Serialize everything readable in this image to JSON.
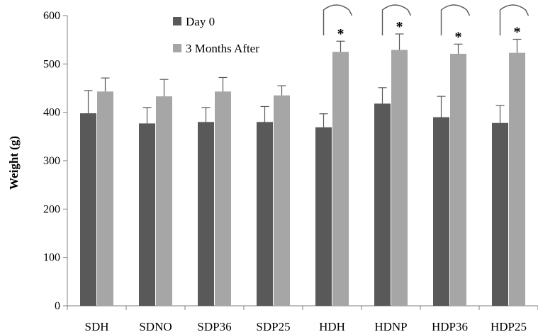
{
  "chart_data": {
    "type": "bar",
    "ylabel": "Weight (g)",
    "ylim": [
      0,
      600
    ],
    "yticks": [
      0,
      100,
      200,
      300,
      400,
      500,
      600
    ],
    "grid": false,
    "legend_position": "top",
    "categories": [
      "SDH",
      "SDNO",
      "SDP36",
      "SDP25",
      "HDH",
      "HDNP",
      "HDP36",
      "HDP25"
    ],
    "series": [
      {
        "name": "Day 0",
        "color": "#595959",
        "values": [
          398,
          377,
          380,
          380,
          369,
          418,
          390,
          378
        ],
        "errors": [
          47,
          33,
          30,
          32,
          28,
          33,
          43,
          36
        ]
      },
      {
        "name": "3 Months After",
        "color": "#a6a6a6",
        "values": [
          443,
          433,
          443,
          435,
          525,
          529,
          521,
          523
        ],
        "errors": [
          28,
          35,
          29,
          20,
          22,
          33,
          20,
          28
        ]
      }
    ],
    "significance_marker": "*",
    "significant_categories": [
      "HDH",
      "HDNP",
      "HDP36",
      "HDP25"
    ]
  }
}
